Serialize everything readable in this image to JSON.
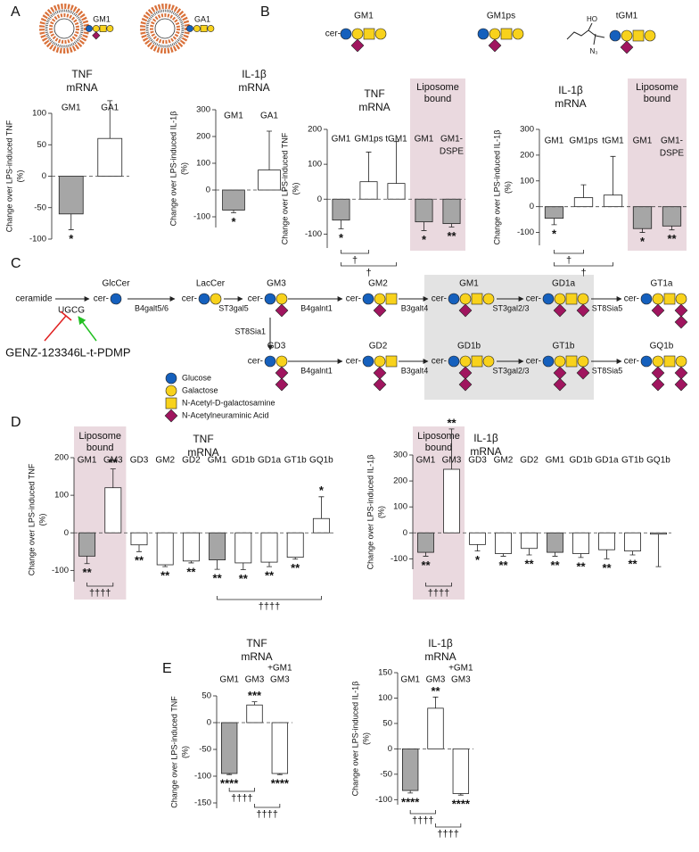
{
  "panels": [
    "A",
    "B",
    "C",
    "D",
    "E"
  ],
  "structures": {
    "liposome_glycans": [
      "GM1",
      "GA1"
    ],
    "synthetic": [
      "GM1",
      "GM1ps",
      "tGM1"
    ],
    "tgm1_groups": [
      "HO",
      "N₃"
    ]
  },
  "pathway": {
    "start": "ceramide",
    "first_enzyme": "UGCG",
    "prefix": "cer-",
    "nodes": [
      "GlcCer",
      "LacCer",
      "GM3",
      "GM2",
      "GM1",
      "GD1a",
      "GT1a",
      "GD3",
      "GD2",
      "GD1b",
      "GT1b",
      "GQ1b"
    ],
    "enzymes": [
      "B4galt5/6",
      "ST3gal5",
      "ST8Sia1",
      "B4galnt1",
      "B3galt4",
      "ST3gal2/3",
      "ST8Sia5",
      "B4galnt1",
      "B3galt4",
      "ST3gal2/3",
      "ST8Sia5"
    ],
    "inhibitor": "GENZ-123346",
    "activator": "L-t-PDMP",
    "legend": [
      "Glucose",
      "Galactose",
      "N-Acetyl-D-galactosamine",
      "N-Acetylneuraminic Acid"
    ]
  },
  "chart_data": [
    {
      "type": "bar",
      "title": [
        "TNF",
        "mRNA"
      ],
      "ylabel": [
        "Change over LPS-induced TNF",
        "(%)"
      ],
      "categories": [
        "GM1",
        "GA1"
      ],
      "values": [
        -60,
        60
      ],
      "errors": [
        25,
        60
      ],
      "colors": [
        "#a6a6a6",
        "#ffffff"
      ],
      "stars": [
        "*",
        null
      ],
      "ylim": [
        -100,
        100
      ],
      "yticks": [
        100,
        50,
        0,
        -50,
        -100
      ]
    },
    {
      "type": "bar",
      "title": [
        "IL-1β",
        "mRNA"
      ],
      "ylabel": [
        "Change over LPS-induced IL-1β",
        "(%)"
      ],
      "categories": [
        "GM1",
        "GA1"
      ],
      "values": [
        -75,
        75
      ],
      "errors": [
        10,
        145
      ],
      "colors": [
        "#a6a6a6",
        "#ffffff"
      ],
      "stars": [
        "*",
        null
      ],
      "ylim": [
        -140,
        300
      ],
      "yticks": [
        300,
        200,
        100,
        0,
        -100
      ]
    },
    {
      "type": "bar",
      "title": [
        "TNF",
        "mRNA"
      ],
      "ylabel": [
        "Change over LPS-induced TNF",
        "(%)"
      ],
      "categories": [
        "GM1",
        "GM1ps",
        "tGM1",
        "GM1",
        [
          "GM1-",
          "DSPE"
        ]
      ],
      "values": [
        -60,
        50,
        45,
        -65,
        -70
      ],
      "errors": [
        25,
        85,
        120,
        25,
        10
      ],
      "colors": [
        "#a6a6a6",
        "#ffffff",
        "#ffffff",
        "#a6a6a6",
        "#a6a6a6"
      ],
      "stars": [
        "*",
        null,
        null,
        "*",
        "**"
      ],
      "brackets": [
        "†",
        "†"
      ],
      "shaded_label": [
        "Liposome",
        "bound"
      ],
      "shade_color": "#ead9df",
      "ylim": [
        -140,
        200
      ],
      "yticks": [
        200,
        100,
        0,
        -100
      ]
    },
    {
      "type": "bar",
      "title": [
        "IL-1β",
        "mRNA"
      ],
      "ylabel": [
        "Change over LPS-induced IL-1β",
        "(%)"
      ],
      "categories": [
        "GM1",
        "GM1ps",
        "tGM1",
        "GM1",
        [
          "GM1-",
          "DSPE"
        ]
      ],
      "values": [
        -45,
        35,
        45,
        -85,
        -75
      ],
      "errors": [
        25,
        50,
        150,
        15,
        15
      ],
      "colors": [
        "#a6a6a6",
        "#ffffff",
        "#ffffff",
        "#a6a6a6",
        "#a6a6a6"
      ],
      "stars": [
        "*",
        null,
        null,
        "*",
        "**"
      ],
      "brackets": [
        "†",
        "†"
      ],
      "shaded_label": [
        "Liposome",
        "bound"
      ],
      "shade_color": "#ead9df",
      "ylim": [
        -150,
        300
      ],
      "yticks": [
        300,
        200,
        100,
        0,
        -100
      ]
    },
    {
      "type": "bar",
      "title": [
        "TNF",
        "mRNA"
      ],
      "ylabel": [
        "Change over LPS-induced TNF",
        "(%)"
      ],
      "categories": [
        "GM1",
        "GM3",
        "GD3",
        "GM2",
        "GD2",
        "GM1",
        "GD1b",
        "GD1a",
        "GT1b",
        "GQ1b"
      ],
      "values": [
        -62,
        120,
        -32,
        -85,
        -75,
        -72,
        -80,
        -78,
        -65,
        38
      ],
      "errors": [
        20,
        50,
        18,
        5,
        5,
        25,
        18,
        12,
        5,
        58
      ],
      "colors": [
        "#a6a6a6",
        "#ffffff",
        "#ffffff",
        "#ffffff",
        "#ffffff",
        "#a6a6a6",
        "#ffffff",
        "#ffffff",
        "#ffffff",
        "#ffffff"
      ],
      "stars": [
        "**",
        "**",
        "**",
        "**",
        "**",
        "**",
        "**",
        "**",
        "**",
        "*"
      ],
      "brackets": [
        "††††",
        "††††"
      ],
      "shaded_label": [
        "Liposome",
        "bound"
      ],
      "shade_color": "#ead9df",
      "ylim": [
        -130,
        200
      ],
      "yticks": [
        200,
        100,
        0,
        -100
      ]
    },
    {
      "type": "bar",
      "title": [
        "IL-1β",
        "mRNA"
      ],
      "ylabel": [
        "Change over LPS-induced IL-1β",
        "(%)"
      ],
      "categories": [
        "GM1",
        "GM3",
        "GD3",
        "GM2",
        "GD2",
        "GM1",
        "GD1b",
        "GD1a",
        "GT1b",
        "GQ1b"
      ],
      "values": [
        -75,
        245,
        -45,
        -80,
        -60,
        -75,
        -80,
        -65,
        -70,
        -5
      ],
      "errors": [
        15,
        155,
        25,
        10,
        25,
        15,
        15,
        35,
        15,
        125
      ],
      "colors": [
        "#a6a6a6",
        "#ffffff",
        "#ffffff",
        "#ffffff",
        "#ffffff",
        "#a6a6a6",
        "#ffffff",
        "#ffffff",
        "#ffffff",
        "#ffffff"
      ],
      "stars": [
        "**",
        "**",
        "*",
        "**",
        "**",
        "**",
        "**",
        "**",
        "**",
        null
      ],
      "brackets": [
        "††††"
      ],
      "shaded_label": [
        "Liposome",
        "bound"
      ],
      "shade_color": "#ead9df",
      "ylim": [
        -140,
        300
      ],
      "yticks": [
        300,
        200,
        100,
        0,
        -100
      ]
    },
    {
      "type": "bar",
      "title": [
        "TNF",
        "mRNA"
      ],
      "ylabel": [
        "Change over LPS-induced TNF",
        "(%)"
      ],
      "categories": [
        "GM1",
        "GM3",
        [
          "+GM1",
          "GM3"
        ]
      ],
      "values": [
        -95,
        33,
        -95
      ],
      "errors": [
        2,
        6,
        2
      ],
      "colors": [
        "#a6a6a6",
        "#ffffff",
        "#ffffff"
      ],
      "stars": [
        "****",
        "***",
        "****"
      ],
      "brackets": [
        "††††",
        "††††"
      ],
      "ylim": [
        -160,
        50
      ],
      "yticks": [
        50,
        0,
        -50,
        -100,
        -150
      ]
    },
    {
      "type": "bar",
      "title": [
        "IL-1β",
        "mRNA"
      ],
      "ylabel": [
        "Change over LPS-induced IL-1β",
        "(%)"
      ],
      "categories": [
        "GM1",
        "GM3",
        [
          "+GM1",
          "GM3"
        ]
      ],
      "values": [
        -82,
        80,
        -88
      ],
      "errors": [
        5,
        22,
        3
      ],
      "colors": [
        "#a6a6a6",
        "#ffffff",
        "#ffffff"
      ],
      "stars": [
        "****",
        "**",
        "****"
      ],
      "brackets": [
        "††††",
        "††††"
      ],
      "ylim": [
        -110,
        150
      ],
      "yticks": [
        150,
        100,
        50,
        0,
        -50,
        -100
      ]
    }
  ]
}
